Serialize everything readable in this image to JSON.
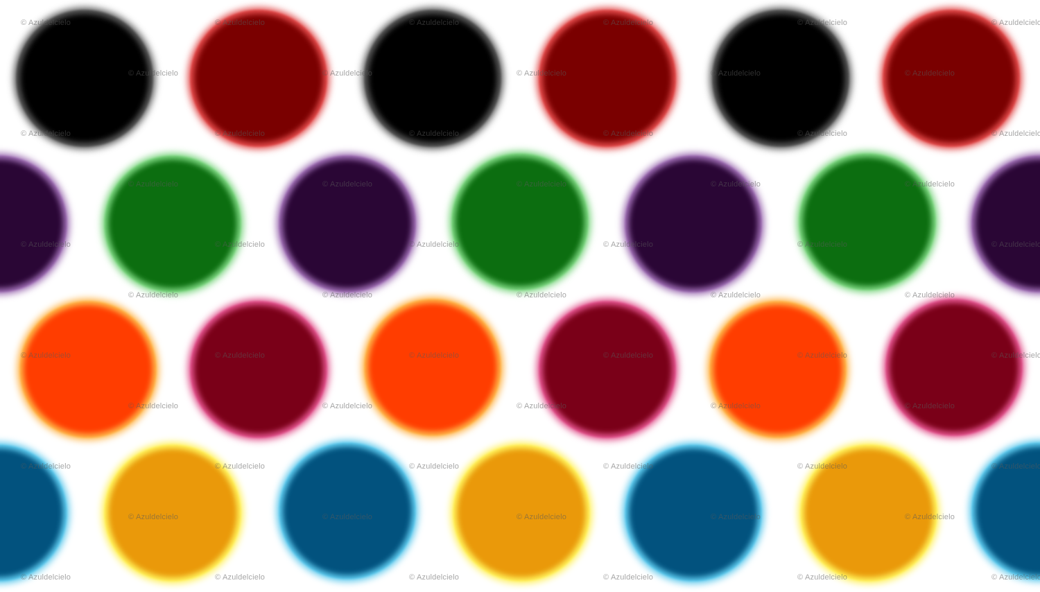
{
  "watermark": "© Azuldelcielo",
  "rows": [
    {
      "name": "black-red",
      "dots": [
        {
          "color": "#000000",
          "rim": "#555555"
        },
        {
          "color": "#7a0000",
          "rim": "#e04848"
        },
        {
          "color": "#000000",
          "rim": "#555555"
        },
        {
          "color": "#7a0000",
          "rim": "#e04848"
        },
        {
          "color": "#000000",
          "rim": "#555555"
        },
        {
          "color": "#7a0000",
          "rim": "#e04848"
        }
      ]
    },
    {
      "name": "purple-green",
      "dots": [
        {
          "color": "#2a0635",
          "rim": "#9b6ab0"
        },
        {
          "color": "#0c6e10",
          "rim": "#7ad47e"
        },
        {
          "color": "#2a0635",
          "rim": "#9b6ab0"
        },
        {
          "color": "#0c6e10",
          "rim": "#7ad47e"
        },
        {
          "color": "#2a0635",
          "rim": "#9b6ab0"
        },
        {
          "color": "#0c6e10",
          "rim": "#7ad47e"
        },
        {
          "color": "#2a0635",
          "rim": "#9b6ab0"
        }
      ]
    },
    {
      "name": "orange-crimson",
      "dots": [
        {
          "color": "#ff3d00",
          "rim": "#ffb347"
        },
        {
          "color": "#7a0018",
          "rim": "#e0508a"
        },
        {
          "color": "#ff3d00",
          "rim": "#ffb347"
        },
        {
          "color": "#7a0018",
          "rim": "#e0508a"
        },
        {
          "color": "#ff3d00",
          "rim": "#ffb347"
        },
        {
          "color": "#7a0018",
          "rim": "#e0508a"
        }
      ]
    },
    {
      "name": "blue-amber",
      "dots": [
        {
          "color": "#02527e",
          "rim": "#5cc8ec"
        },
        {
          "color": "#ea990a",
          "rim": "#fff05a"
        },
        {
          "color": "#02527e",
          "rim": "#5cc8ec"
        },
        {
          "color": "#ea990a",
          "rim": "#fff05a"
        },
        {
          "color": "#02527e",
          "rim": "#5cc8ec"
        },
        {
          "color": "#ea990a",
          "rim": "#fff05a"
        },
        {
          "color": "#02527e",
          "rim": "#5cc8ec"
        }
      ]
    }
  ]
}
